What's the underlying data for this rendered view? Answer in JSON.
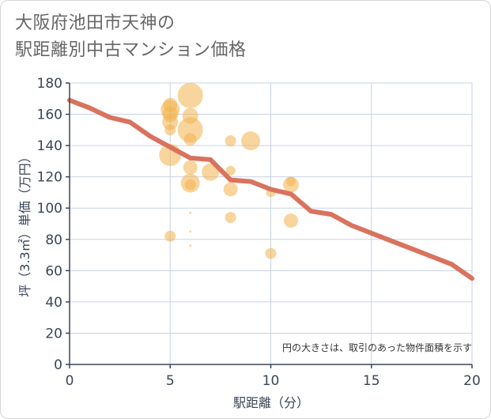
{
  "chart_data": {
    "type": "scatter",
    "title_line1": "大阪府池田市天神の",
    "title_line2": "駅距離別中古マンション価格",
    "xlabel": "駅距離（分）",
    "ylabel": "坪（3.3㎡）単価（万円）",
    "note": "円の大きさは、取引のあった物件面積を示す",
    "xlim": [
      0,
      20
    ],
    "ylim": [
      0,
      180
    ],
    "x_ticks": [
      0,
      5,
      10,
      15,
      20
    ],
    "y_ticks": [
      0,
      20,
      40,
      60,
      80,
      100,
      120,
      140,
      160,
      180
    ],
    "colors": {
      "bubble": "#f2b24d",
      "trend": "#d9735e",
      "grid": "#c8d3e6",
      "axis": "#3a4558"
    },
    "bubbles": [
      {
        "x": 5,
        "y": 166,
        "size": 9
      },
      {
        "x": 5,
        "y": 163,
        "size": 12
      },
      {
        "x": 5,
        "y": 160,
        "size": 10
      },
      {
        "x": 5,
        "y": 155,
        "size": 10
      },
      {
        "x": 5,
        "y": 150,
        "size": 7
      },
      {
        "x": 5,
        "y": 134,
        "size": 14
      },
      {
        "x": 5,
        "y": 82,
        "size": 7
      },
      {
        "x": 6,
        "y": 172,
        "size": 16
      },
      {
        "x": 6,
        "y": 159,
        "size": 10
      },
      {
        "x": 6,
        "y": 150,
        "size": 16
      },
      {
        "x": 6,
        "y": 144,
        "size": 8
      },
      {
        "x": 6,
        "y": 126,
        "size": 9
      },
      {
        "x": 6,
        "y": 116,
        "size": 12
      },
      {
        "x": 6,
        "y": 115,
        "size": 7
      },
      {
        "x": 6,
        "y": 97,
        "size": 1.5
      },
      {
        "x": 6,
        "y": 85,
        "size": 1.5
      },
      {
        "x": 6,
        "y": 76,
        "size": 1.5
      },
      {
        "x": 7,
        "y": 123,
        "size": 11
      },
      {
        "x": 8,
        "y": 143,
        "size": 7
      },
      {
        "x": 8,
        "y": 124,
        "size": 6
      },
      {
        "x": 8,
        "y": 112,
        "size": 9
      },
      {
        "x": 8,
        "y": 94,
        "size": 7
      },
      {
        "x": 9,
        "y": 143,
        "size": 12
      },
      {
        "x": 10,
        "y": 110,
        "size": 6
      },
      {
        "x": 10,
        "y": 71,
        "size": 7
      },
      {
        "x": 11,
        "y": 117,
        "size": 6
      },
      {
        "x": 11,
        "y": 115,
        "size": 10
      },
      {
        "x": 11,
        "y": 92,
        "size": 9
      }
    ],
    "trend": [
      {
        "x": 0,
        "y": 169
      },
      {
        "x": 1,
        "y": 164
      },
      {
        "x": 2,
        "y": 158
      },
      {
        "x": 3,
        "y": 155
      },
      {
        "x": 4,
        "y": 146
      },
      {
        "x": 5,
        "y": 139
      },
      {
        "x": 6,
        "y": 132
      },
      {
        "x": 7,
        "y": 131
      },
      {
        "x": 8,
        "y": 118
      },
      {
        "x": 9,
        "y": 117
      },
      {
        "x": 10,
        "y": 112
      },
      {
        "x": 11,
        "y": 109
      },
      {
        "x": 12,
        "y": 98
      },
      {
        "x": 13,
        "y": 96
      },
      {
        "x": 14,
        "y": 89
      },
      {
        "x": 15,
        "y": 84
      },
      {
        "x": 16,
        "y": 79
      },
      {
        "x": 17,
        "y": 74
      },
      {
        "x": 18,
        "y": 69
      },
      {
        "x": 19,
        "y": 64
      },
      {
        "x": 20,
        "y": 55
      }
    ]
  }
}
